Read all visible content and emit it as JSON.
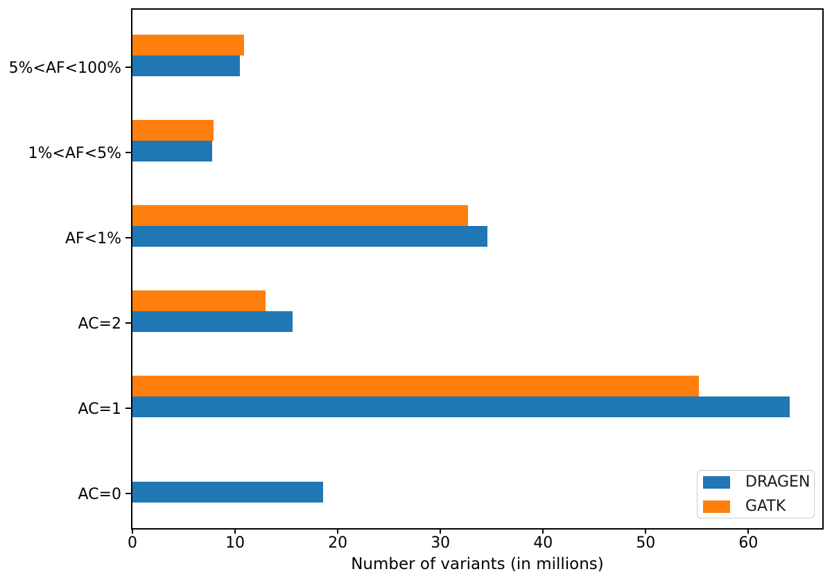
{
  "chart_data": {
    "type": "bar",
    "orientation": "horizontal",
    "title": "",
    "xlabel": "Number of variants (in millions)",
    "ylabel": "",
    "categories": [
      "5%<AF<100%",
      "1%<AF<5%",
      "AF<1%",
      "AC=2",
      "AC=1",
      "AC=0"
    ],
    "category_order": "top-to-bottom",
    "series": [
      {
        "name": "DRAGEN",
        "color": "#1f77b4",
        "values": [
          10.5,
          7.8,
          34.6,
          15.6,
          64.0,
          18.6
        ]
      },
      {
        "name": "GATK",
        "color": "#ff7f0e",
        "values": [
          10.9,
          7.9,
          32.7,
          13.0,
          55.2,
          0
        ]
      }
    ],
    "x_ticks": [
      0,
      10,
      20,
      30,
      40,
      50,
      60
    ],
    "xlim": [
      0,
      67.2
    ],
    "grid": false,
    "legend": {
      "position": "lower-right",
      "entries": [
        "DRAGEN",
        "GATK"
      ]
    },
    "axis_color": "#000000",
    "background": "#ffffff"
  }
}
